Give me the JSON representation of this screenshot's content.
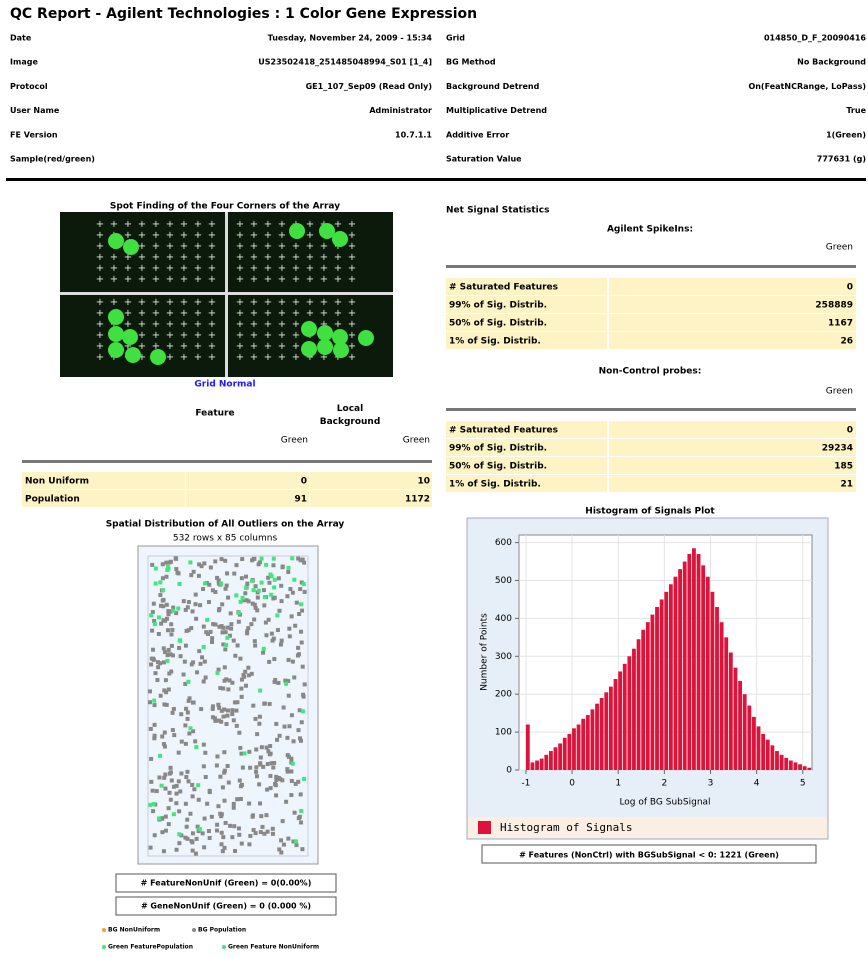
{
  "header": {
    "title": "QC Report - Agilent Technologies : 1 Color Gene Expression"
  },
  "info": {
    "left": [
      {
        "label": "Date",
        "value": "Tuesday, November 24, 2009 - 15:34"
      },
      {
        "label": "Image",
        "value": "US23502418_251485048994_S01 [1_4]"
      },
      {
        "label": "Protocol",
        "value": "GE1_107_Sep09 (Read Only)"
      },
      {
        "label": "User Name",
        "value": "Administrator"
      },
      {
        "label": "FE Version",
        "value": "10.7.1.1"
      },
      {
        "label": "Sample(red/green)"
      }
    ],
    "right": [
      {
        "label": "Grid",
        "value": "014850_D_F_20090416"
      },
      {
        "label": "BG Method",
        "value": "No Background"
      },
      {
        "label": "Background Detrend",
        "value": "On(FeatNCRange, LoPass)"
      },
      {
        "label": "Multiplicative Detrend",
        "value": "True"
      },
      {
        "label": "Additive Error",
        "value": "1(Green)"
      },
      {
        "label": "Saturation Value",
        "value": "777631 (g)"
      }
    ]
  },
  "spot_finding": {
    "title": "Spot Finding of the Four Corners of the Array",
    "status": "Grid Normal"
  },
  "feature_table": {
    "header_feature": "Feature",
    "header_background": "Local Background",
    "channel_labels": [
      "Green",
      "Green"
    ],
    "rows": [
      [
        "Non Uniform",
        0,
        10
      ],
      [
        "Population",
        91,
        1172
      ]
    ]
  },
  "net_signal": {
    "title": "Net Signal Statistics",
    "spikeins": {
      "title": "Agilent SpikeIns:",
      "channel": "Green",
      "rows": [
        [
          "# Saturated Features",
          0
        ],
        [
          "99% of Sig. Distrib.",
          258889
        ],
        [
          "50% of Sig. Distrib.",
          1167
        ],
        [
          "1% of Sig. Distrib.",
          26
        ]
      ]
    },
    "noncontrol": {
      "title": "Non-Control probes:",
      "channel": "Green",
      "rows": [
        [
          "# Saturated Features",
          0
        ],
        [
          "99% of Sig. Distrib.",
          29234
        ],
        [
          "50% of Sig. Distrib.",
          185
        ],
        [
          "1% of Sig. Distrib.",
          21
        ]
      ]
    }
  },
  "spatial": {
    "title": "Spatial Distribution of All Outliers on the Array",
    "subtitle": "532 rows x 85 columns",
    "stats": [
      "# FeatureNonUnif (Green) = 0(0.00%)",
      "# GeneNonUnif (Green) = 0 (0.000 %)"
    ],
    "legend": [
      "BG NonUniform",
      "BG Population",
      "Green FeaturePopulation",
      "Green Feature NonUniform"
    ]
  },
  "chart_data": {
    "type": "histogram",
    "title": "Histogram of Signals Plot",
    "x_label": "Log of BG SubSignal",
    "y_label": "Number of Points",
    "series_name": "Histogram of Signals",
    "color": "#dc143c",
    "note": "# Features (NonCtrl) with BGSubSignal < 0: 1221 (Green)",
    "bins": [
      -1.0,
      -0.9,
      -0.8,
      -0.7,
      -0.6,
      -0.5,
      -0.4,
      -0.3,
      -0.2,
      -0.1,
      0.0,
      0.1,
      0.2,
      0.3,
      0.4,
      0.5,
      0.6,
      0.7,
      0.8,
      0.9,
      1.0,
      1.1,
      1.2,
      1.3,
      1.4,
      1.5,
      1.6,
      1.7,
      1.8,
      1.9,
      2.0,
      2.1,
      2.2,
      2.3,
      2.4,
      2.5,
      2.6,
      2.7,
      2.8,
      2.9,
      3.0,
      3.1,
      3.2,
      3.3,
      3.4,
      3.5,
      3.6,
      3.7,
      3.8,
      3.9,
      4.0,
      4.1,
      4.2,
      4.3,
      4.4,
      4.5,
      4.6,
      4.7,
      4.8,
      4.9,
      5.0,
      5.1,
      5.2
    ],
    "counts": [
      120,
      20,
      25,
      30,
      40,
      50,
      60,
      70,
      85,
      95,
      110,
      120,
      135,
      145,
      160,
      175,
      190,
      205,
      220,
      240,
      260,
      280,
      300,
      320,
      345,
      370,
      390,
      410,
      430,
      450,
      470,
      490,
      510,
      530,
      550,
      570,
      585,
      570,
      540,
      510,
      470,
      430,
      390,
      350,
      310,
      270,
      235,
      200,
      170,
      140,
      115,
      95,
      80,
      65,
      50,
      40,
      32,
      25,
      20,
      15,
      10,
      6
    ],
    "xlim": [
      -1.15,
      5.2
    ],
    "xticks": [
      -1,
      0,
      1,
      2,
      3,
      4,
      5
    ],
    "ylim": [
      0,
      620
    ],
    "yticks": [
      0,
      100,
      200,
      300,
      400,
      500,
      600
    ],
    "grid": true
  }
}
